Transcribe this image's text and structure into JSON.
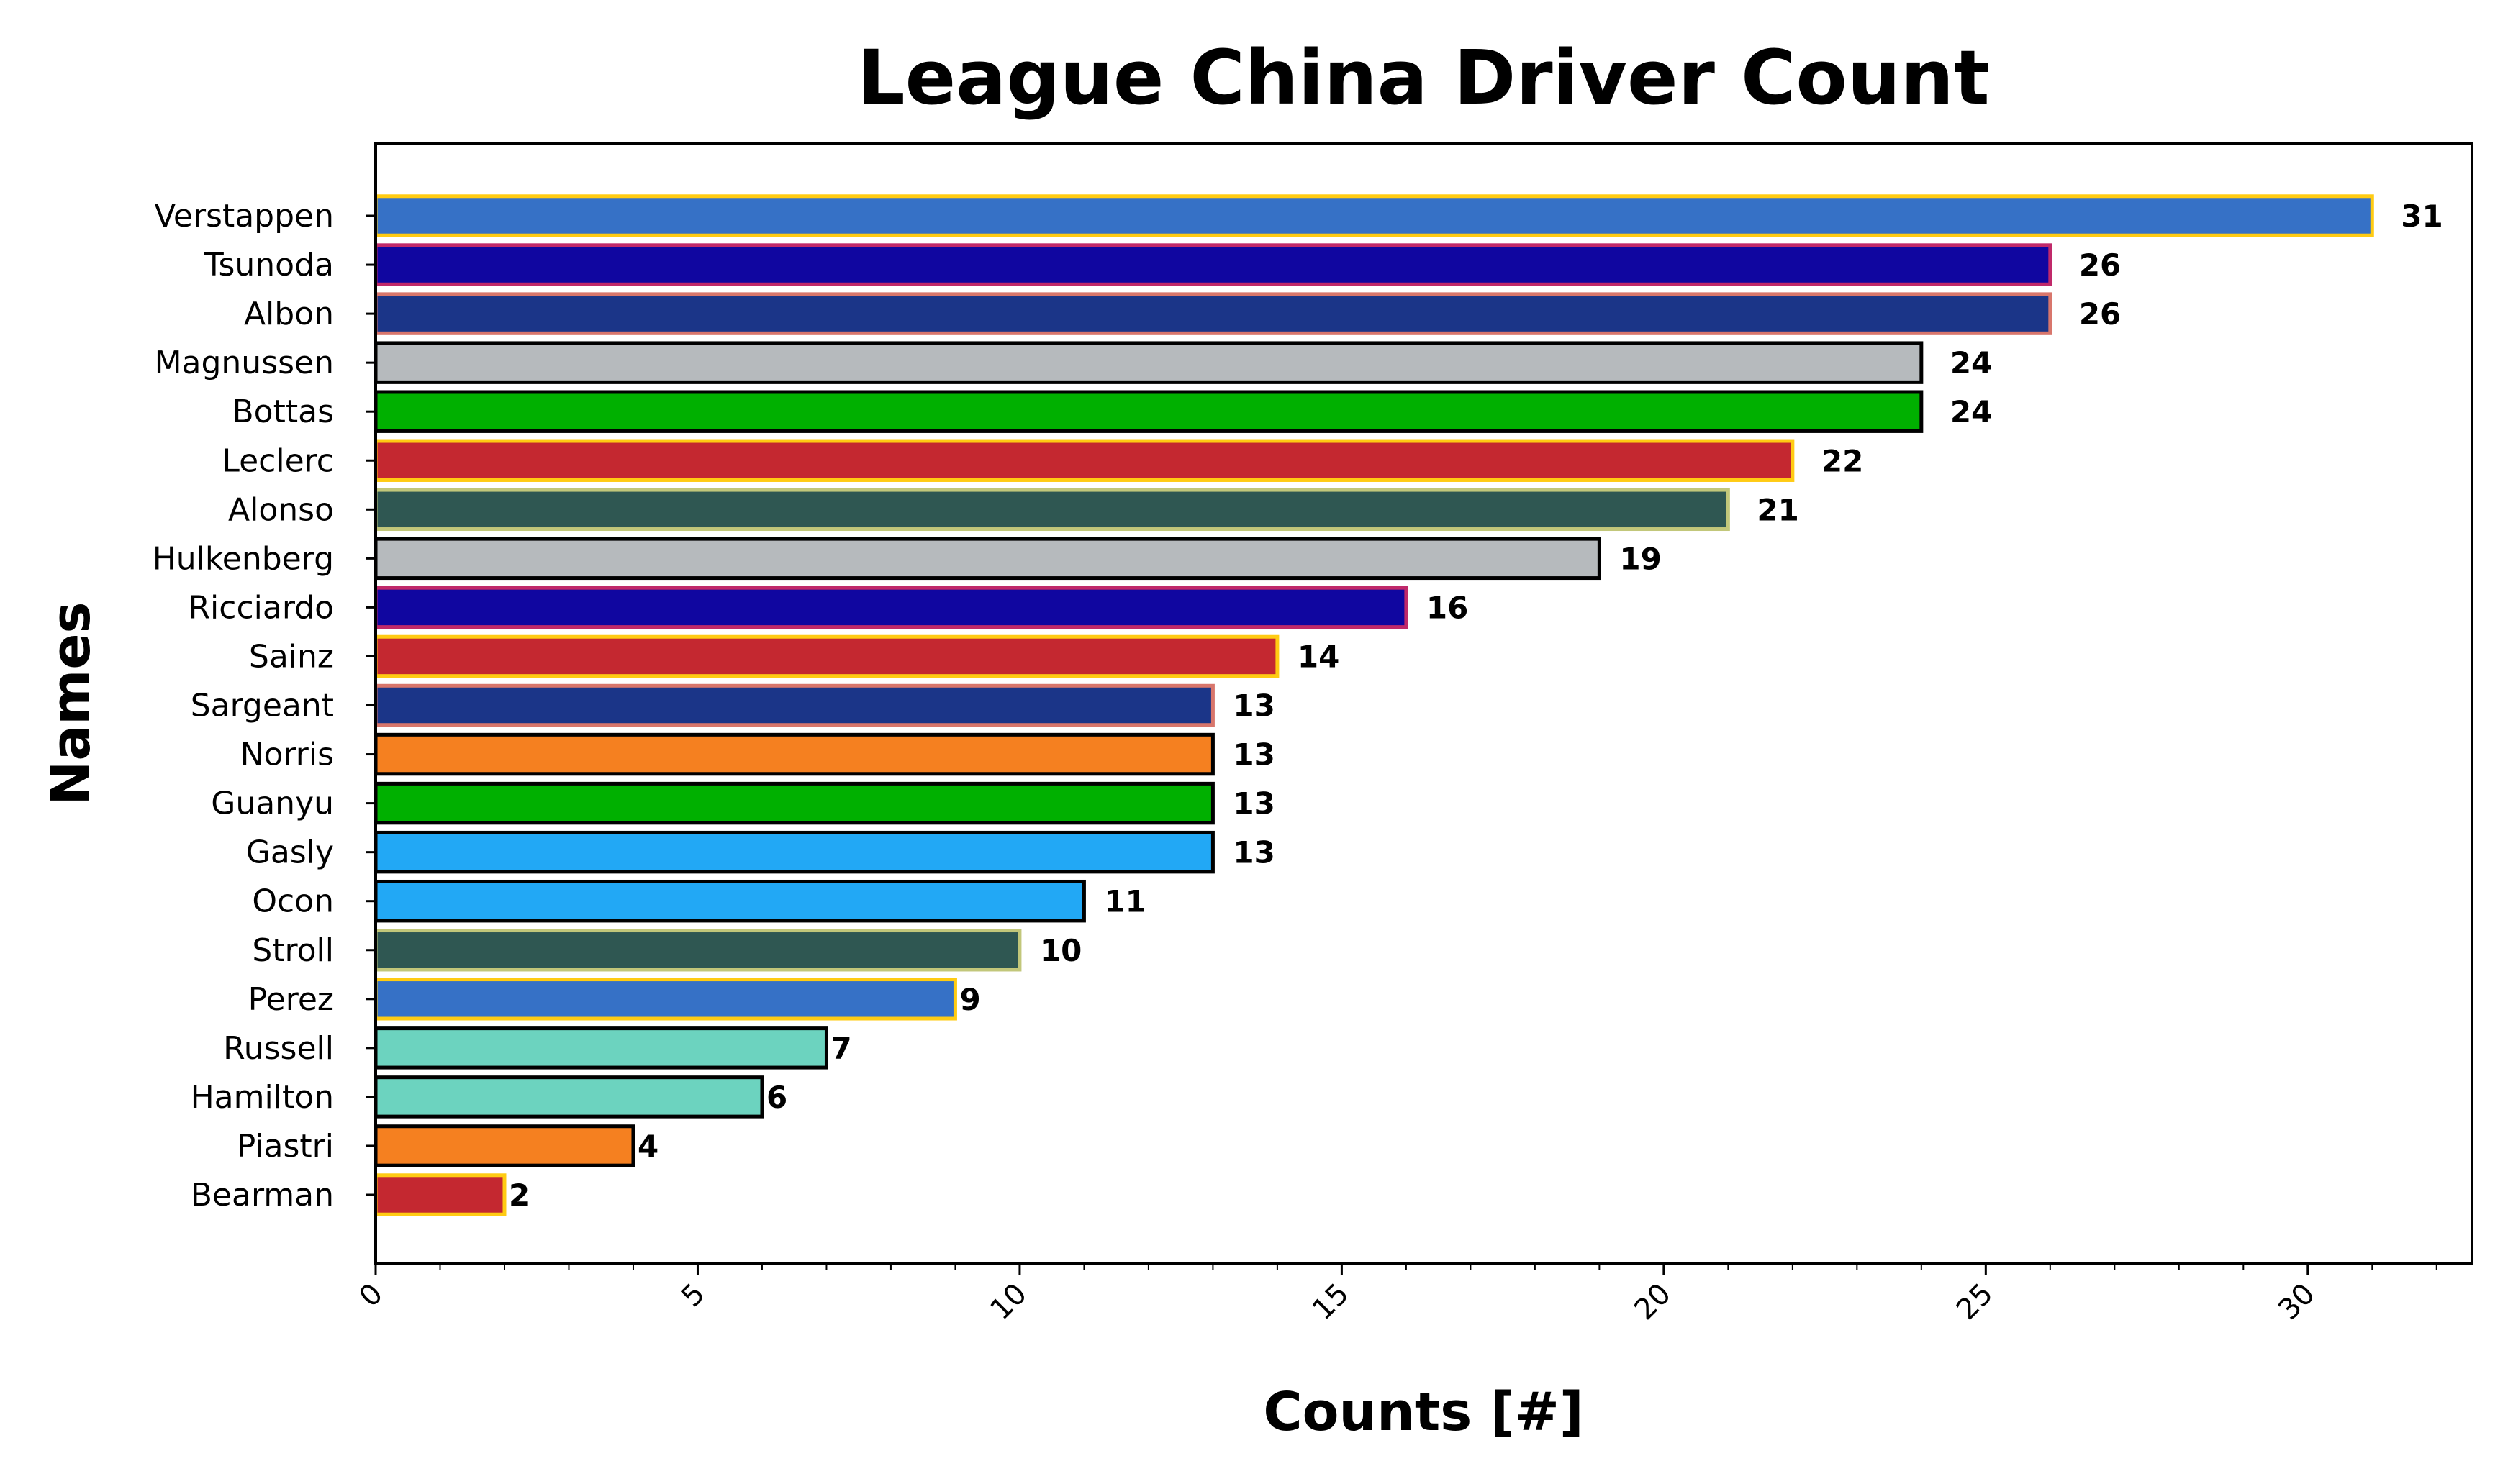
{
  "chart_data": {
    "type": "bar",
    "orientation": "horizontal",
    "title": "League China Driver Count",
    "xlabel": "Counts [#]",
    "ylabel": "Names",
    "xlim": [
      0,
      32.55
    ],
    "xticks": [
      0,
      5,
      10,
      15,
      20,
      25,
      30
    ],
    "xtick_labels": [
      "0",
      "5",
      "10",
      "15",
      "20",
      "25",
      "30"
    ],
    "xtick_rotation": 45,
    "grid": false,
    "legend": "none",
    "categories": [
      "Verstappen",
      "Tsunoda",
      "Albon",
      "Magnussen",
      "Bottas",
      "Leclerc",
      "Alonso",
      "Hulkenberg",
      "Ricciardo",
      "Sainz",
      "Sargeant",
      "Norris",
      "Guanyu",
      "Gasly",
      "Ocon",
      "Stroll",
      "Perez",
      "Russell",
      "Hamilton",
      "Piastri",
      "Bearman"
    ],
    "values": [
      31,
      26,
      26,
      24,
      24,
      22,
      21,
      19,
      16,
      14,
      13,
      13,
      13,
      13,
      11,
      10,
      9,
      7,
      6,
      4,
      2
    ],
    "data_labels": [
      "31",
      "26",
      "26",
      "24",
      "24",
      "22",
      "21",
      "19",
      "16",
      "14",
      "13",
      "13",
      "13",
      "13",
      "11",
      "10",
      "9",
      "7",
      "6",
      "4",
      "2"
    ],
    "bar_colors": [
      "#3671C6",
      "#1006A0",
      "#1B3588",
      "#B6BABD",
      "#00B000",
      "#C42830",
      "#2F5752",
      "#B6BABD",
      "#1006A0",
      "#C42830",
      "#1B3588",
      "#F58020",
      "#00B000",
      "#22A8F5",
      "#22A8F5",
      "#2F5752",
      "#3671C6",
      "#6CD3BF",
      "#6CD3BF",
      "#F58020",
      "#C42830"
    ],
    "edge_colors": [
      "#FFCB13",
      "#C0296A",
      "#D8766C",
      "#000000",
      "#000000",
      "#FFCB13",
      "#C2C77A",
      "#000000",
      "#C0296A",
      "#FFCB13",
      "#D8766C",
      "#000000",
      "#000000",
      "#000000",
      "#000000",
      "#C2C77A",
      "#FFCB13",
      "#000000",
      "#000000",
      "#000000",
      "#FFCB13"
    ]
  }
}
